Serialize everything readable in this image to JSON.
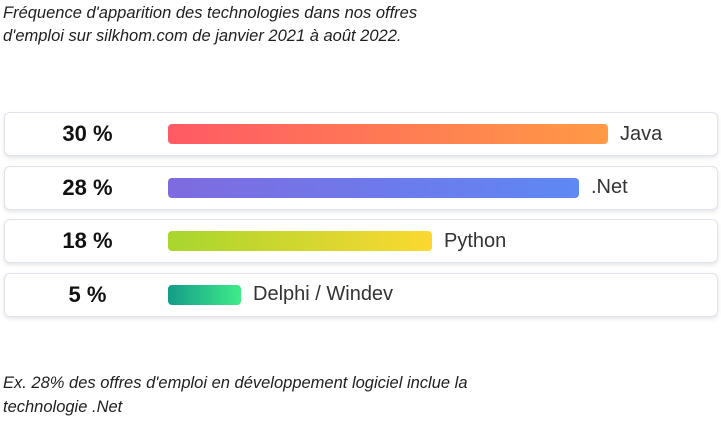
{
  "caption": "Fréquence d'apparition des technologies dans nos offres d'emploi sur silkhom.com de janvier 2021 à août 2022.",
  "example": "Ex. 28% des offres d'emploi en développement logiciel inclue la technologie .Net",
  "chart_data": {
    "type": "bar",
    "orientation": "horizontal",
    "title": "",
    "xlabel": "",
    "ylabel": "",
    "xlim": [
      0,
      30
    ],
    "categories": [
      "Java",
      ".Net",
      "Python",
      "Delphi / Windev"
    ],
    "values": [
      30,
      28,
      18,
      5
    ],
    "value_labels": [
      "30 %",
      "28 %",
      "18 %",
      "5 %"
    ],
    "grid": false,
    "colors": [
      [
        "#ff5a64",
        "#ff9a45"
      ],
      [
        "#7e6be0",
        "#5e88f3"
      ],
      [
        "#a8d62e",
        "#fbd830"
      ],
      [
        "#149c88",
        "#3fec89"
      ]
    ]
  }
}
